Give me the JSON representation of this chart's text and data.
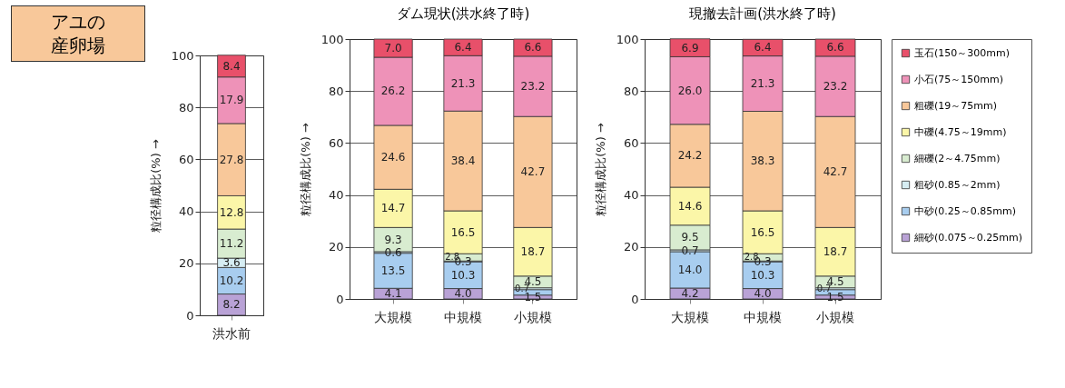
{
  "chart_data": [
    {
      "type": "bar",
      "stacked": true,
      "annotations": [
        "アユの産卵場"
      ],
      "ylabel": "粒径構成比(%) →",
      "categories": [
        "洪水前"
      ],
      "ylim": [
        0,
        100
      ],
      "yticks": [
        0,
        20,
        40,
        60,
        80,
        100
      ],
      "grid": "y",
      "legend": false,
      "series": [
        {
          "color": "#b9a2d6",
          "values": [
            8.2
          ],
          "value_labels": [
            "8.2"
          ]
        },
        {
          "color": "#a8cdef",
          "values": [
            10.2
          ],
          "value_labels": [
            "10.2"
          ]
        },
        {
          "color": "#d6edf3",
          "values": [
            3.6
          ],
          "value_labels": [
            "3.6"
          ]
        },
        {
          "color": "#d8ecd0",
          "values": [
            11.2
          ],
          "value_labels": [
            "11.2"
          ]
        },
        {
          "color": "#fbf6a8",
          "values": [
            12.8
          ],
          "value_labels": [
            "12.8"
          ]
        },
        {
          "color": "#f8c89a",
          "values": [
            27.8
          ],
          "value_labels": [
            "27.8"
          ]
        },
        {
          "color": "#ee92b8",
          "values": [
            17.9
          ],
          "value_labels": [
            "17.9"
          ]
        },
        {
          "color": "#e8506a",
          "values": [
            8.4
          ],
          "value_labels": [
            "8.4"
          ]
        }
      ]
    },
    {
      "type": "bar",
      "stacked": true,
      "title": "ダム現状(洪水終了時)",
      "ylabel": "粒径構成比(%) →",
      "categories": [
        "大規模",
        "中規模",
        "小規模"
      ],
      "ylim": [
        0,
        100
      ],
      "yticks": [
        0,
        20,
        40,
        60,
        80,
        100
      ],
      "grid": "y",
      "legend": false,
      "series": [
        {
          "color": "#b9a2d6",
          "values": [
            4.1,
            4.0,
            1.5
          ],
          "value_labels": [
            "4.1",
            "4.0",
            "1.5"
          ]
        },
        {
          "color": "#a8cdef",
          "values": [
            13.5,
            10.3,
            2.1
          ],
          "value_labels": [
            "13.5",
            "10.3",
            null
          ]
        },
        {
          "color": "#d6edf3",
          "values": [
            0.6,
            0.3,
            0.7
          ],
          "value_labels": [
            "0.6",
            "0.3",
            "0.7"
          ]
        },
        {
          "color": "#d8ecd0",
          "values": [
            9.3,
            2.8,
            4.5
          ],
          "value_labels": [
            "9.3",
            "2.8",
            "4.5"
          ]
        },
        {
          "color": "#fbf6a8",
          "values": [
            14.7,
            16.5,
            18.7
          ],
          "value_labels": [
            "14.7",
            "16.5",
            "18.7"
          ]
        },
        {
          "color": "#f8c89a",
          "values": [
            24.6,
            38.4,
            42.7
          ],
          "value_labels": [
            "24.6",
            "38.4",
            "42.7"
          ]
        },
        {
          "color": "#ee92b8",
          "values": [
            26.2,
            21.3,
            23.2
          ],
          "value_labels": [
            "26.2",
            "21.3",
            "23.2"
          ]
        },
        {
          "color": "#e8506a",
          "values": [
            7.0,
            6.4,
            6.6
          ],
          "value_labels": [
            "7.0",
            "6.4",
            "6.6"
          ]
        }
      ]
    },
    {
      "type": "bar",
      "stacked": true,
      "title": "現撤去計画(洪水終了時)",
      "ylabel": "粒径構成比(%) →",
      "categories": [
        "大規模",
        "中規模",
        "小規模"
      ],
      "ylim": [
        0,
        100
      ],
      "yticks": [
        0,
        20,
        40,
        60,
        80,
        100
      ],
      "grid": "y",
      "legend": "right",
      "series": [
        {
          "name": "細砂(0.075～0.25mm)",
          "color": "#b9a2d6",
          "values": [
            4.2,
            4.0,
            1.5
          ],
          "value_labels": [
            "4.2",
            "4.0",
            "1.5"
          ]
        },
        {
          "name": "中砂(0.25～0.85mm)",
          "color": "#a8cdef",
          "values": [
            14.0,
            10.3,
            2.1
          ],
          "value_labels": [
            "14.0",
            "10.3",
            null
          ]
        },
        {
          "name": "粗砂(0.85～2mm)",
          "color": "#d6edf3",
          "values": [
            0.7,
            0.3,
            0.7
          ],
          "value_labels": [
            "0.7",
            "0.3",
            "0.7"
          ]
        },
        {
          "name": "細礫(2～4.75mm)",
          "color": "#d8ecd0",
          "values": [
            9.5,
            2.8,
            4.5
          ],
          "value_labels": [
            "9.5",
            "2.8",
            "4.5"
          ]
        },
        {
          "name": "中礫(4.75～19mm)",
          "color": "#fbf6a8",
          "values": [
            14.6,
            16.5,
            18.7
          ],
          "value_labels": [
            "14.6",
            "16.5",
            "18.7"
          ]
        },
        {
          "name": "粗礫(19～75mm)",
          "color": "#f8c89a",
          "values": [
            24.2,
            38.3,
            42.7
          ],
          "value_labels": [
            "24.2",
            "38.3",
            "42.7"
          ]
        },
        {
          "name": "小石(75～150mm)",
          "color": "#ee92b8",
          "values": [
            26.0,
            21.3,
            23.2
          ],
          "value_labels": [
            "26.0",
            "21.3",
            "23.2"
          ]
        },
        {
          "name": "玉石(150～300mm)",
          "color": "#e8506a",
          "values": [
            6.9,
            6.4,
            6.6
          ],
          "value_labels": [
            "6.9",
            "6.4",
            "6.6"
          ]
        }
      ]
    }
  ]
}
